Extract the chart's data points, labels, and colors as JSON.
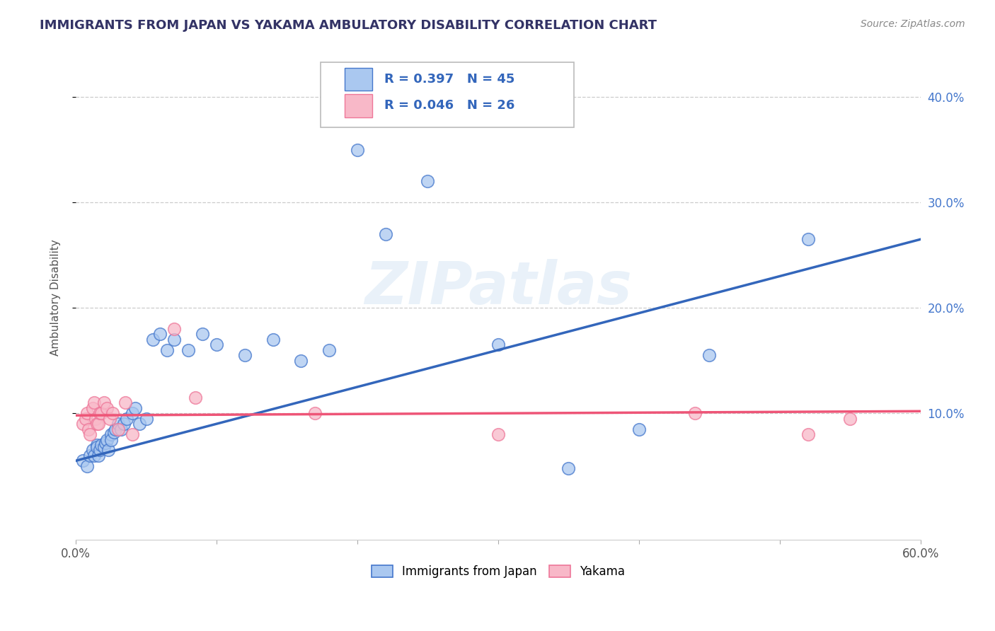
{
  "title": "IMMIGRANTS FROM JAPAN VS YAKAMA AMBULATORY DISABILITY CORRELATION CHART",
  "source": "Source: ZipAtlas.com",
  "ylabel": "Ambulatory Disability",
  "xlim": [
    0.0,
    0.6
  ],
  "ylim": [
    -0.02,
    0.44
  ],
  "xtick_positions": [
    0.0,
    0.1,
    0.2,
    0.3,
    0.4,
    0.5,
    0.6
  ],
  "xtick_labels": [
    "0.0%",
    "",
    "",
    "",
    "",
    "",
    "60.0%"
  ],
  "ytick_positions": [
    0.1,
    0.2,
    0.3,
    0.4
  ],
  "ytick_labels": [
    "10.0%",
    "20.0%",
    "30.0%",
    "40.0%"
  ],
  "grid_color": "#cccccc",
  "background_color": "#ffffff",
  "blue_fill_color": "#aac8f0",
  "blue_edge_color": "#4477cc",
  "pink_fill_color": "#f8b8c8",
  "pink_edge_color": "#ee7799",
  "blue_line_color": "#3366bb",
  "pink_line_color": "#ee5577",
  "legend_R_blue": "R = 0.397",
  "legend_N_blue": "N = 45",
  "legend_R_pink": "R = 0.046",
  "legend_N_pink": "N = 26",
  "legend_label_blue": "Immigrants from Japan",
  "legend_label_pink": "Yakama",
  "watermark": "ZIPatlas",
  "blue_scatter_x": [
    0.005,
    0.008,
    0.01,
    0.012,
    0.013,
    0.015,
    0.015,
    0.016,
    0.017,
    0.018,
    0.02,
    0.021,
    0.022,
    0.023,
    0.025,
    0.025,
    0.027,
    0.028,
    0.03,
    0.032,
    0.034,
    0.036,
    0.04,
    0.042,
    0.045,
    0.05,
    0.055,
    0.06,
    0.065,
    0.07,
    0.08,
    0.09,
    0.1,
    0.12,
    0.14,
    0.16,
    0.18,
    0.2,
    0.22,
    0.25,
    0.3,
    0.35,
    0.4,
    0.45,
    0.52
  ],
  "blue_scatter_y": [
    0.055,
    0.05,
    0.06,
    0.065,
    0.06,
    0.07,
    0.068,
    0.06,
    0.065,
    0.07,
    0.068,
    0.072,
    0.075,
    0.065,
    0.08,
    0.075,
    0.082,
    0.085,
    0.09,
    0.085,
    0.09,
    0.095,
    0.1,
    0.105,
    0.09,
    0.095,
    0.17,
    0.175,
    0.16,
    0.17,
    0.16,
    0.175,
    0.165,
    0.155,
    0.17,
    0.15,
    0.16,
    0.35,
    0.27,
    0.32,
    0.165,
    0.048,
    0.085,
    0.155,
    0.265
  ],
  "pink_scatter_x": [
    0.005,
    0.007,
    0.008,
    0.009,
    0.01,
    0.012,
    0.013,
    0.014,
    0.015,
    0.016,
    0.017,
    0.018,
    0.02,
    0.022,
    0.024,
    0.026,
    0.03,
    0.035,
    0.04,
    0.07,
    0.085,
    0.17,
    0.3,
    0.44,
    0.52,
    0.55
  ],
  "pink_scatter_y": [
    0.09,
    0.095,
    0.1,
    0.085,
    0.08,
    0.105,
    0.11,
    0.095,
    0.09,
    0.09,
    0.1,
    0.1,
    0.11,
    0.105,
    0.095,
    0.1,
    0.085,
    0.11,
    0.08,
    0.18,
    0.115,
    0.1,
    0.08,
    0.1,
    0.08,
    0.095
  ],
  "blue_line_x": [
    0.0,
    0.6
  ],
  "blue_line_y": [
    0.055,
    0.265
  ],
  "pink_line_x": [
    0.0,
    0.6
  ],
  "pink_line_y": [
    0.098,
    0.102
  ],
  "title_color": "#333366",
  "source_color": "#888888",
  "axis_label_color": "#555555",
  "right_tick_color": "#4477cc"
}
